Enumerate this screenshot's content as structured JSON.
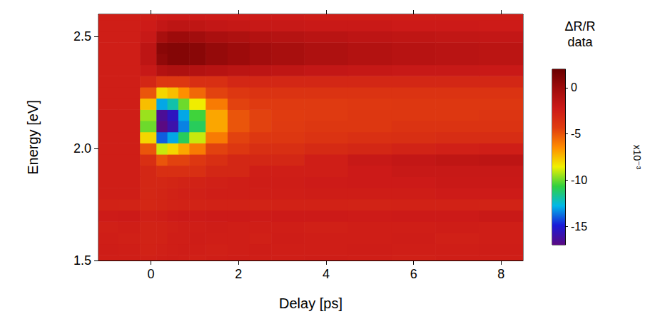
{
  "chart_data": {
    "type": "heatmap",
    "x_label": "Delay [ps]",
    "y_label": "Energy [eV]",
    "x": [
      -1,
      -0.5,
      0,
      0.25,
      0.5,
      0.75,
      1,
      1.5,
      2,
      2.5,
      3,
      4,
      5,
      6,
      7,
      8
    ],
    "y": [
      1.5,
      1.55,
      1.6,
      1.65,
      1.7,
      1.75,
      1.8,
      1.85,
      1.9,
      1.95,
      2.0,
      2.05,
      2.1,
      2.15,
      2.2,
      2.25,
      2.3,
      2.35,
      2.4,
      2.45,
      2.5,
      2.55,
      2.6
    ],
    "values": [
      [
        -2.5,
        -2.5,
        -2.6,
        -2.5,
        -2.4,
        -2.5,
        -2.6,
        -2.5,
        -2.4,
        -2.5,
        -2.5,
        -2.4,
        -2.5,
        -2.6,
        -2.5,
        -2.5
      ],
      [
        -2.4,
        -2.5,
        -2.7,
        -2.6,
        -2.5,
        -2.4,
        -2.5,
        -2.6,
        -2.5,
        -2.4,
        -2.5,
        -2.5,
        -2.4,
        -2.5,
        -2.5,
        -2.4
      ],
      [
        -2.5,
        -2.6,
        -2.8,
        -2.7,
        -2.5,
        -2.5,
        -2.4,
        -2.5,
        -2.5,
        -2.6,
        -2.4,
        -2.5,
        -2.5,
        -2.4,
        -2.6,
        -2.5
      ],
      [
        -2.6,
        -2.5,
        -2.8,
        -2.7,
        -2.6,
        -2.5,
        -2.5,
        -2.4,
        -2.5,
        -2.5,
        -2.5,
        -2.6,
        -2.5,
        -2.5,
        -2.4,
        -2.5
      ],
      [
        -2.3,
        -2.2,
        -2.6,
        -2.5,
        -2.3,
        -2.2,
        -2.3,
        -2.2,
        -2.2,
        -2.3,
        -2.2,
        -2.2,
        -2.3,
        -2.2,
        -2.2,
        -2.1
      ],
      [
        -2.7,
        -2.8,
        -3.0,
        -2.9,
        -2.8,
        -2.7,
        -2.8,
        -2.7,
        -2.7,
        -2.8,
        -2.7,
        -2.7,
        -2.8,
        -2.7,
        -2.7,
        -2.8
      ],
      [
        -2.5,
        -2.5,
        -3.0,
        -2.9,
        -2.7,
        -2.6,
        -2.6,
        -2.5,
        -2.5,
        -2.5,
        -2.5,
        -2.4,
        -2.4,
        -2.4,
        -2.3,
        -2.3
      ],
      [
        -2.5,
        -2.5,
        -3.0,
        -3.0,
        -2.9,
        -2.8,
        -2.7,
        -2.6,
        -2.5,
        -2.4,
        -2.4,
        -2.3,
        -2.2,
        -2.2,
        -2.1,
        -2.1
      ],
      [
        -2.5,
        -2.5,
        -3,
        -3.5,
        -3.5,
        -3.5,
        -3.5,
        -3,
        -3,
        -2.5,
        -2.5,
        -2.5,
        -2.2,
        -2,
        -2,
        -2
      ],
      [
        -2.5,
        -2.5,
        -3.5,
        -5,
        -4.5,
        -4.5,
        -4,
        -3.5,
        -3,
        -3,
        -3,
        -2.5,
        -2,
        -1.8,
        -1.6,
        -1.5
      ],
      [
        -2.5,
        -2.5,
        -5,
        -9,
        -8,
        -7,
        -6,
        -4.5,
        -4,
        -3.5,
        -3.5,
        -3.2,
        -3,
        -2.8,
        -2.6,
        -2.5
      ],
      [
        -2.5,
        -2.5,
        -8,
        -14,
        -13,
        -11,
        -9,
        -6,
        -4.5,
        -4,
        -4,
        -3.8,
        -3.6,
        -3.5,
        -3.4,
        -3.4
      ],
      [
        -2.5,
        -2.5,
        -10,
        -17,
        -16,
        -13.5,
        -11,
        -7,
        -5,
        -4.5,
        -4.2,
        -4,
        -4,
        -3.8,
        -3.8,
        -3.8
      ],
      [
        -2.5,
        -2.5,
        -9.5,
        -16.5,
        -15.5,
        -13,
        -10.5,
        -7,
        -5,
        -4.5,
        -4.3,
        -4.2,
        -4,
        -4,
        -4,
        -3.9
      ],
      [
        -2.5,
        -2.5,
        -7.5,
        -13,
        -12,
        -10,
        -8.5,
        -6,
        -4.5,
        -4.2,
        -4.2,
        -4.2,
        -4.1,
        -4,
        -4,
        -4
      ],
      [
        -2.5,
        -2.5,
        -5,
        -8,
        -7.5,
        -6.5,
        -5.5,
        -4.5,
        -4,
        -3.8,
        -3.8,
        -3.8,
        -3.8,
        -3.8,
        -3.8,
        -3.8
      ],
      [
        -2.5,
        -2.5,
        -3,
        -4,
        -4,
        -4,
        -3.5,
        -3.5,
        -3,
        -3,
        -3,
        -3,
        -3,
        -3,
        -3,
        -3
      ],
      [
        -2.5,
        -2.5,
        -2,
        -1,
        -0.8,
        -0.8,
        -1,
        -1.2,
        -1.4,
        -1.5,
        -1.6,
        -1.8,
        -1.9,
        -2,
        -2,
        -2.1
      ],
      [
        -2.5,
        -2.5,
        -1.5,
        0.5,
        1,
        1,
        0.8,
        0.3,
        0,
        -0.3,
        -0.5,
        -0.8,
        -1,
        -1.2,
        -1.3,
        -1.4
      ],
      [
        -2.5,
        -2.5,
        -1.5,
        0.8,
        1,
        1,
        0.8,
        0.3,
        0,
        -0.3,
        -0.5,
        -0.8,
        -1,
        -1.2,
        -1.3,
        -1.4
      ],
      [
        -2.5,
        -2.5,
        -2,
        -0.5,
        0,
        0,
        -0.2,
        -0.6,
        -0.8,
        -1,
        -1.1,
        -1.3,
        -1.5,
        -1.6,
        -1.7,
        -1.8
      ],
      [
        -2.5,
        -2.5,
        -2.3,
        -1.8,
        -1.5,
        -1.5,
        -1.6,
        -1.8,
        -1.9,
        -2,
        -2,
        -2.1,
        -2.1,
        -2.2,
        -2.2,
        -2.3
      ],
      [
        -2.5,
        -2.5,
        -2.5,
        -2.3,
        -2.2,
        -2.2,
        -2.2,
        -2.3,
        -2.3,
        -2.3,
        -2.3,
        -2.4,
        -2.4,
        -2.4,
        -2.4,
        -2.4
      ]
    ],
    "xlim": [
      -1.2,
      8.5
    ],
    "xticks": [
      0,
      2,
      4,
      6,
      8
    ],
    "ylim": [
      1.5,
      2.6
    ],
    "yticks": [
      1.5,
      {
        "value": 2,
        "label": "2.0"
      },
      2.5
    ],
    "colorbar": {
      "title": "ΔR/R data",
      "label": "x10⁻³",
      "range": [
        -17,
        2
      ],
      "ticks": [
        -15,
        -10,
        -5,
        0
      ]
    }
  }
}
